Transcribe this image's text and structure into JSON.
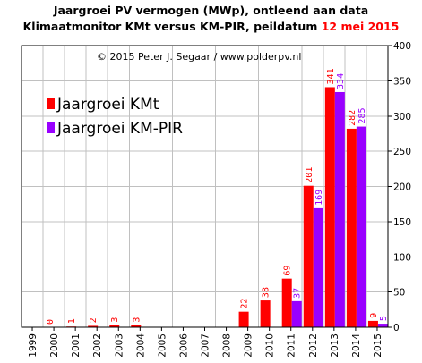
{
  "header": {
    "line1": "Jaargroei PV vermogen (MWp), ontleend aan data",
    "line2_prefix": "Klimaatmonitor  KMt versus KM-PIR,  peildatum ",
    "line2_date": "12 mei 2015"
  },
  "copyright": "© 2015 Peter J. Segaar / www.polderpv.nl",
  "colors": {
    "kmt": "#ff0000",
    "kmpir": "#9900ff",
    "highlight": "#ff0000",
    "grid": "#c0c0c0"
  },
  "chart_data": {
    "type": "bar",
    "title": "Jaargroei PV vermogen (MWp), ontleend aan data Klimaatmonitor KMt versus KM-PIR, peildatum 12 mei 2015",
    "categories": [
      "1999",
      "2000",
      "2001",
      "2002",
      "2003",
      "2004",
      "2005",
      "2006",
      "2007",
      "2008",
      "2009",
      "2010",
      "2011",
      "2012",
      "2013",
      "2014",
      "2015"
    ],
    "series": [
      {
        "name": "Jaargroei KMt",
        "color": "#ff0000",
        "values": [
          null,
          0,
          1,
          2,
          3,
          3,
          null,
          null,
          null,
          null,
          22,
          38,
          69,
          201,
          341,
          282,
          9
        ]
      },
      {
        "name": "Jaargroei KM-PIR",
        "color": "#9900ff",
        "values": [
          null,
          null,
          null,
          null,
          null,
          null,
          null,
          null,
          null,
          null,
          null,
          null,
          37,
          169,
          334,
          285,
          5
        ]
      }
    ],
    "ylim": [
      0,
      400
    ],
    "yticks": [
      0,
      50,
      100,
      150,
      200,
      250,
      300,
      350,
      400
    ],
    "y_axis_side": "right",
    "grid": true,
    "legend_position": "top-left"
  }
}
